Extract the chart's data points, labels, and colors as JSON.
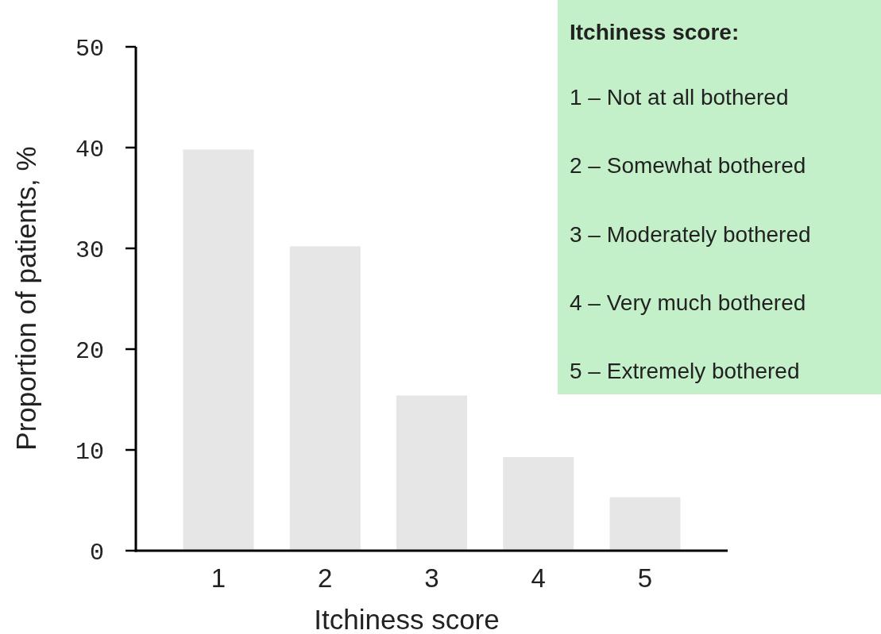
{
  "chart_data": {
    "type": "bar",
    "xlabel": "Itchiness score",
    "ylabel": "Proportion of patients, %",
    "categories": [
      "1",
      "2",
      "3",
      "4",
      "5"
    ],
    "values": [
      39.8,
      30.2,
      15.4,
      9.3,
      5.3
    ],
    "color": "#e6e6e6",
    "ylim": [
      0,
      50
    ],
    "yticks": [
      0,
      10,
      20,
      30,
      40,
      50
    ],
    "grid": false,
    "annotations": [
      "Itchiness score:",
      "1 – Not at all bothered",
      "2 – Somewhat bothered",
      "3 – Moderately bothered",
      "4 – Very much bothered",
      "5 – Extremely bothered"
    ]
  }
}
